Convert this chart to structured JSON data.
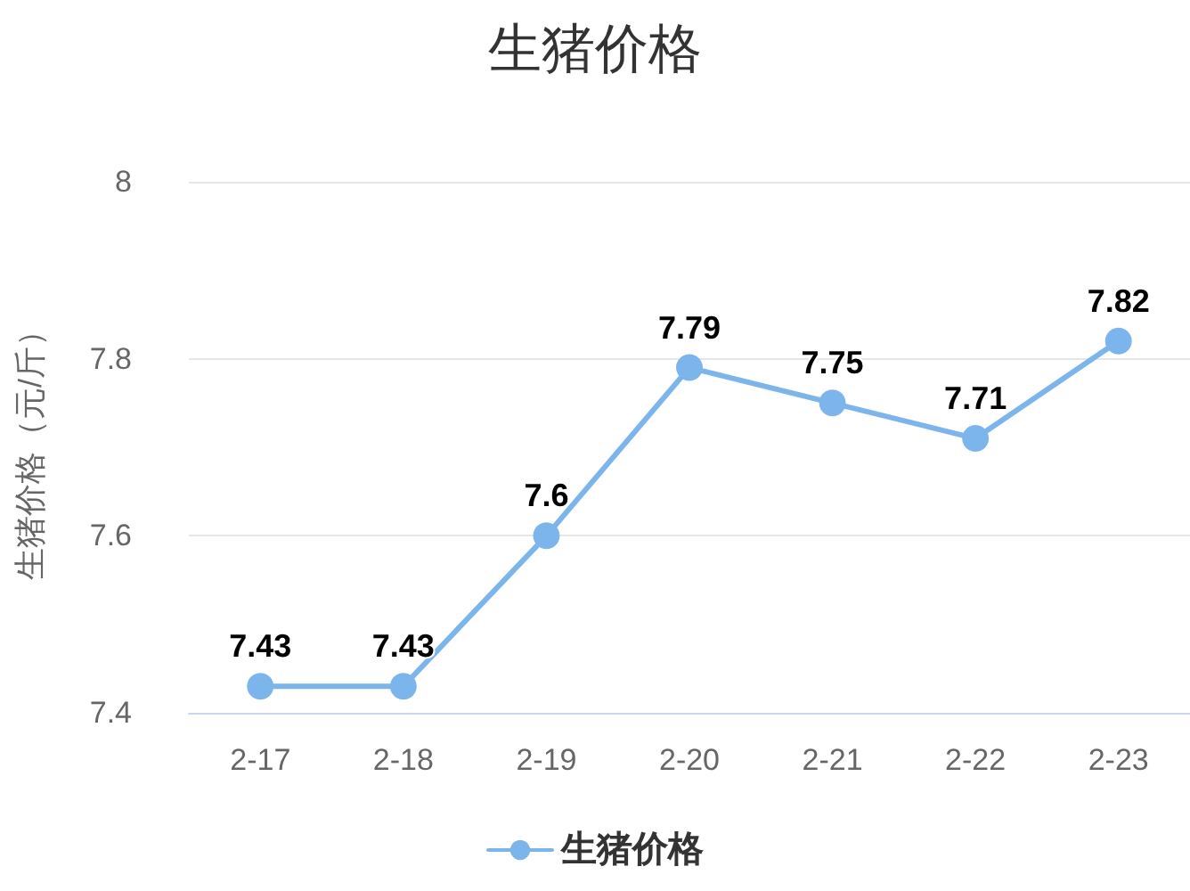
{
  "chart_data": {
    "type": "line",
    "title": "生猪价格",
    "ylabel": "生猪价格（元/斤）",
    "categories": [
      "2-17",
      "2-18",
      "2-19",
      "2-20",
      "2-21",
      "2-22",
      "2-23"
    ],
    "series": [
      {
        "name": "生猪价格",
        "color": "#7cb5ec",
        "values": [
          7.43,
          7.43,
          7.6,
          7.79,
          7.75,
          7.71,
          7.82
        ]
      }
    ],
    "ylim": [
      7.4,
      8
    ],
    "yticks": [
      7.4,
      7.6,
      7.8,
      8
    ],
    "grid": "y",
    "legend": "bottom",
    "marker": "circle",
    "line_style": "solid",
    "data_labels": true
  }
}
